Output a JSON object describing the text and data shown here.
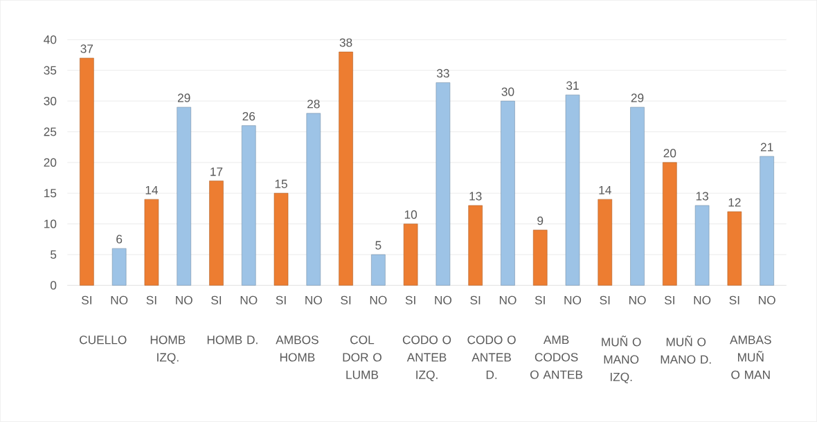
{
  "chart_data": {
    "type": "bar",
    "categories": [
      "SI",
      "NO",
      "SI",
      "NO",
      "SI",
      "NO",
      "SI",
      "NO",
      "SI",
      "NO",
      "SI",
      "NO",
      "SI",
      "NO",
      "SI",
      "NO",
      "SI",
      "NO",
      "SI",
      "NO",
      "SI",
      "NO"
    ],
    "values": [
      37,
      6,
      14,
      29,
      17,
      26,
      15,
      28,
      38,
      5,
      10,
      33,
      13,
      30,
      9,
      31,
      14,
      29,
      20,
      13,
      12,
      21
    ],
    "colors": [
      "#ed7d31",
      "#9dc3e6",
      "#ed7d31",
      "#9dc3e6",
      "#ed7d31",
      "#9dc3e6",
      "#ed7d31",
      "#9dc3e6",
      "#ed7d31",
      "#9dc3e6",
      "#ed7d31",
      "#9dc3e6",
      "#ed7d31",
      "#9dc3e6",
      "#ed7d31",
      "#9dc3e6",
      "#ed7d31",
      "#9dc3e6",
      "#ed7d31",
      "#9dc3e6",
      "#ed7d31",
      "#9dc3e6"
    ],
    "annotations": [
      "CUELLO",
      "HOMB IZQ.",
      "HOMB D.",
      "AMBOS HOMB",
      "COL DOR O LUMB",
      "CODO O ANTEB IZQ.",
      "CODO O ANTEB D.",
      "AMB CODOS O ANTEB",
      "MUÑ O MANO IZQ.",
      "MUÑ O MANO D.",
      "AMBAS MUÑ O MAN"
    ],
    "ylim": [
      0,
      40
    ],
    "yticks": [
      0,
      5,
      10,
      15,
      20,
      25,
      30,
      35,
      40
    ],
    "grid": "y",
    "data_labels": true
  }
}
